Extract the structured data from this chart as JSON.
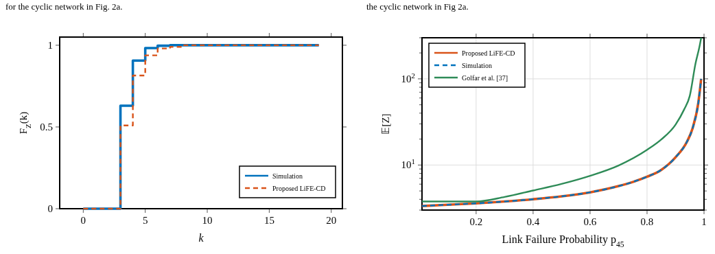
{
  "chart_data": [
    {
      "type": "step",
      "annotations": [
        "for the cyclic network in Fig. 2a."
      ],
      "xlabel": "k",
      "ylabel": "F$_{Z}$(k)",
      "x": [
        0,
        1,
        2,
        3,
        4,
        5,
        6,
        7,
        8,
        9,
        10,
        11,
        12,
        13,
        14,
        15,
        16,
        17,
        18,
        19
      ],
      "series": [
        {
          "name": "Simulation",
          "color": "#0072bd",
          "line_style": "solid",
          "values": [
            0,
            0,
            0,
            0.63,
            0.906,
            0.983,
            0.997,
            1,
            1,
            1,
            1,
            1,
            1,
            1,
            1,
            1,
            1,
            1,
            1,
            1
          ]
        },
        {
          "name": "Proposed LiFE-CD",
          "color": "#d95319",
          "line_style": "dashed",
          "values": [
            0,
            0,
            0,
            0.509,
            0.815,
            0.938,
            0.98,
            0.99,
            1,
            1,
            1,
            1,
            1,
            1,
            1,
            1,
            1,
            1,
            1,
            1
          ]
        }
      ],
      "xlim": [
        -1.9,
        20.9
      ],
      "xticks": [
        0,
        5,
        10,
        15,
        20
      ],
      "ylim": [
        0,
        1.05
      ],
      "yticks": [
        0,
        0.5,
        1
      ],
      "legend": "bottom right"
    },
    {
      "type": "line",
      "annotations": [
        "the cyclic network in Fig 2a."
      ],
      "xlabel": "Link Failure Probability p$_{45}$",
      "ylabel": "𝔼[Z]",
      "series": [
        {
          "name": "Proposed LiFE-CD",
          "color": "#d95319",
          "line_style": "solid",
          "x": [
            0.01,
            0.1,
            0.2,
            0.3,
            0.4,
            0.5,
            0.6,
            0.7,
            0.75,
            0.8,
            0.85,
            0.9,
            0.94,
            0.96,
            0.98,
            0.99
          ],
          "values": [
            3.34,
            3.46,
            3.59,
            3.77,
            4.01,
            4.33,
            4.82,
            5.69,
            6.35,
            7.31,
            8.79,
            12.3,
            18.6,
            26.8,
            52.8,
            100
          ]
        },
        {
          "name": "Simulation",
          "color": "#0072bd",
          "line_style": "dashed",
          "x": [
            0.01,
            0.1,
            0.2,
            0.3,
            0.4,
            0.5,
            0.6,
            0.7,
            0.75,
            0.8,
            0.85,
            0.9,
            0.94,
            0.96,
            0.98,
            0.99
          ],
          "values": [
            3.34,
            3.46,
            3.59,
            3.77,
            4.01,
            4.33,
            4.82,
            5.69,
            6.35,
            7.31,
            8.79,
            12.3,
            18.6,
            26.8,
            52.8,
            100
          ]
        },
        {
          "name": "Golfar et al. [37]",
          "color": "#2e8b57",
          "line_style": "solid",
          "x": [
            0.01,
            0.2,
            0.3,
            0.4,
            0.5,
            0.6,
            0.7,
            0.8,
            0.85,
            0.9,
            0.93,
            0.95,
            0.97,
            0.985,
            0.99
          ],
          "values": [
            3.77,
            3.77,
            4.26,
            5.06,
            6.04,
            7.5,
            9.88,
            15,
            19.8,
            29.4,
            44,
            63.5,
            150,
            245,
            300
          ]
        }
      ],
      "xlim": [
        0.01,
        1
      ],
      "xticks": [
        0.2,
        0.4,
        0.6,
        0.8,
        1
      ],
      "ylim": [
        3,
        300
      ],
      "log": true,
      "yticks": [
        {
          "value": 3,
          "label": null
        },
        {
          "value": 4,
          "label": null
        },
        {
          "value": 5,
          "label": null
        },
        {
          "value": 6,
          "label": null
        },
        {
          "value": 7,
          "label": null
        },
        {
          "value": 8,
          "label": null
        },
        {
          "value": 9,
          "label": null
        },
        {
          "value": 10,
          "label": "10$^{1}$"
        },
        {
          "value": 20,
          "label": null
        },
        {
          "value": 30,
          "label": null
        },
        {
          "value": 40,
          "label": null
        },
        {
          "value": 50,
          "label": null
        },
        {
          "value": 60,
          "label": null
        },
        {
          "value": 70,
          "label": null
        },
        {
          "value": 80,
          "label": null
        },
        {
          "value": 90,
          "label": null
        },
        {
          "value": 100,
          "label": "10$^{2}$"
        },
        {
          "value": 200,
          "label": null
        },
        {
          "value": 300,
          "label": null
        }
      ],
      "grid": true,
      "legend": "top left"
    }
  ]
}
